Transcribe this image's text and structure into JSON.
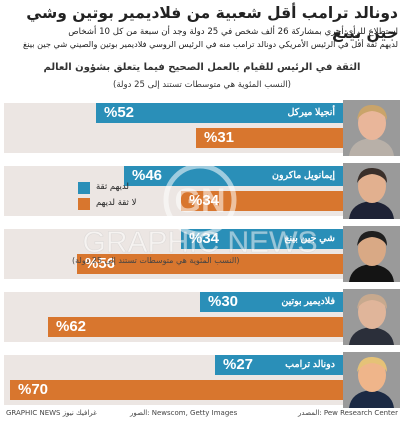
{
  "header": {
    "title": "دونالد ترامب أقل شعبية من فلاديمير بوتين وشي جين بينغ",
    "subtitle_line1": "استطلاع للرأي أجري بمشاركة 26 ألف شخص في 25 دولة وجد أن سبعة من كل 10 أشخاص",
    "subtitle_line2": "لديهم ثقة أقل في الرئيس الأمريكي دونالد ترامب منه في الرئيس الروسي فلاديمير بوتين والصيني شي جين بينغ",
    "question": "الثقة في الرئيس للقيام بالعمل الصحيح فيما يتعلق بشؤون العالم",
    "question_note": "(النسب المئوية هي متوسطات تستند إلى 25 دولة)"
  },
  "legend": {
    "confidence_label": "لديهم ثقة",
    "no_confidence_label": "لا ثقة لديهم",
    "note": "(النسب المئوية هي متوسطات تستند إلى 25 دولة)"
  },
  "watermark": {
    "logo_text": "GN",
    "brand_text": "GRAPHIC NEWS"
  },
  "footer": {
    "source": "المصدر: Pew Research Center",
    "photos": "الصور: Newscom, Getty Images",
    "credit": "GRAPHIC NEWS غرافيك نيوز"
  },
  "colors": {
    "confidence": "#2a8fb8",
    "no_confidence": "#d8762e",
    "row_bg": "#ece6e3"
  },
  "chart_data": {
    "type": "bar",
    "categories": [
      "أنجيلا ميركل",
      "إيمانويل ماكرون",
      "شي جين بينغ",
      "فلاديمير بوتين",
      "دونالد ترامب"
    ],
    "series": [
      {
        "name": "لديهم ثقة",
        "values": [
          52,
          46,
          34,
          30,
          27
        ]
      },
      {
        "name": "لا ثقة لديهم",
        "values": [
          31,
          34,
          56,
          62,
          70
        ]
      }
    ],
    "value_labels_confidence": [
      "%52",
      "%46",
      "%34",
      "%30",
      "%27"
    ],
    "value_labels_no_confidence": [
      "%31",
      "%34",
      "%56",
      "%62",
      "%70"
    ],
    "xlim": [
      0,
      85
    ],
    "orientation": "horizontal-right-anchored"
  }
}
